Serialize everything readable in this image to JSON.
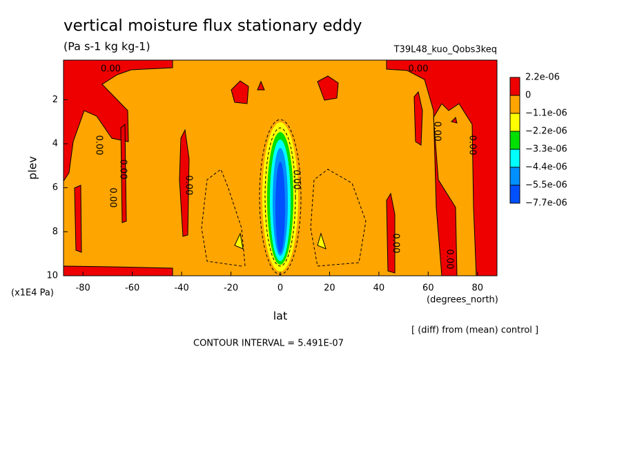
{
  "chart_data": {
    "type": "contour",
    "title": "vertical moisture flux stationary eddy",
    "subtitle": "(Pa s-1 kg kg-1)",
    "experiment": "T39L48_kuo_Qobs3keq",
    "x_label": "lat",
    "y_label": "plev",
    "y_unit": "(x1E4 Pa)",
    "x_unit": "(degrees_north)",
    "note": "[ (diff) from (mean) control ]",
    "contour_interval": "CONTOUR INTERVAL = 5.491E-07",
    "xlim": [
      -87.9,
      87.9
    ],
    "xticks": [
      -80,
      -60,
      -40,
      -20,
      0,
      20,
      40,
      60,
      80
    ],
    "ylim": [
      10,
      0.2
    ],
    "yticks": [
      2,
      4,
      6,
      8,
      10
    ],
    "contour_labels": [
      "0.00",
      "0.00",
      "0.00",
      "0.00",
      "0.00",
      "0.00",
      "0.00",
      "0.00",
      "0.00",
      "0.00",
      "0.00"
    ],
    "colorbar": {
      "levels": [
        {
          "value": 2.2e-06,
          "label": "2.2e-06"
        },
        0,
        {
          "value": -1.1e-06,
          "label": "−1.1e-06"
        },
        {
          "value": -2.2e-06,
          "label": "−2.2e-06"
        },
        {
          "value": -3.3e-06,
          "label": "−3.3e-06"
        },
        {
          "value": -4.4e-06,
          "label": "−4.4e-06"
        },
        {
          "value": -5.5e-06,
          "label": "−5.5e-06"
        },
        {
          "value": -7.7e-06,
          "label": "−7.7e-06"
        }
      ],
      "colors": [
        "#ee0000",
        "#ffa500",
        "#ffff00",
        "#00e000",
        "#00ffff",
        "#0090ff",
        "#0050ff"
      ]
    }
  }
}
